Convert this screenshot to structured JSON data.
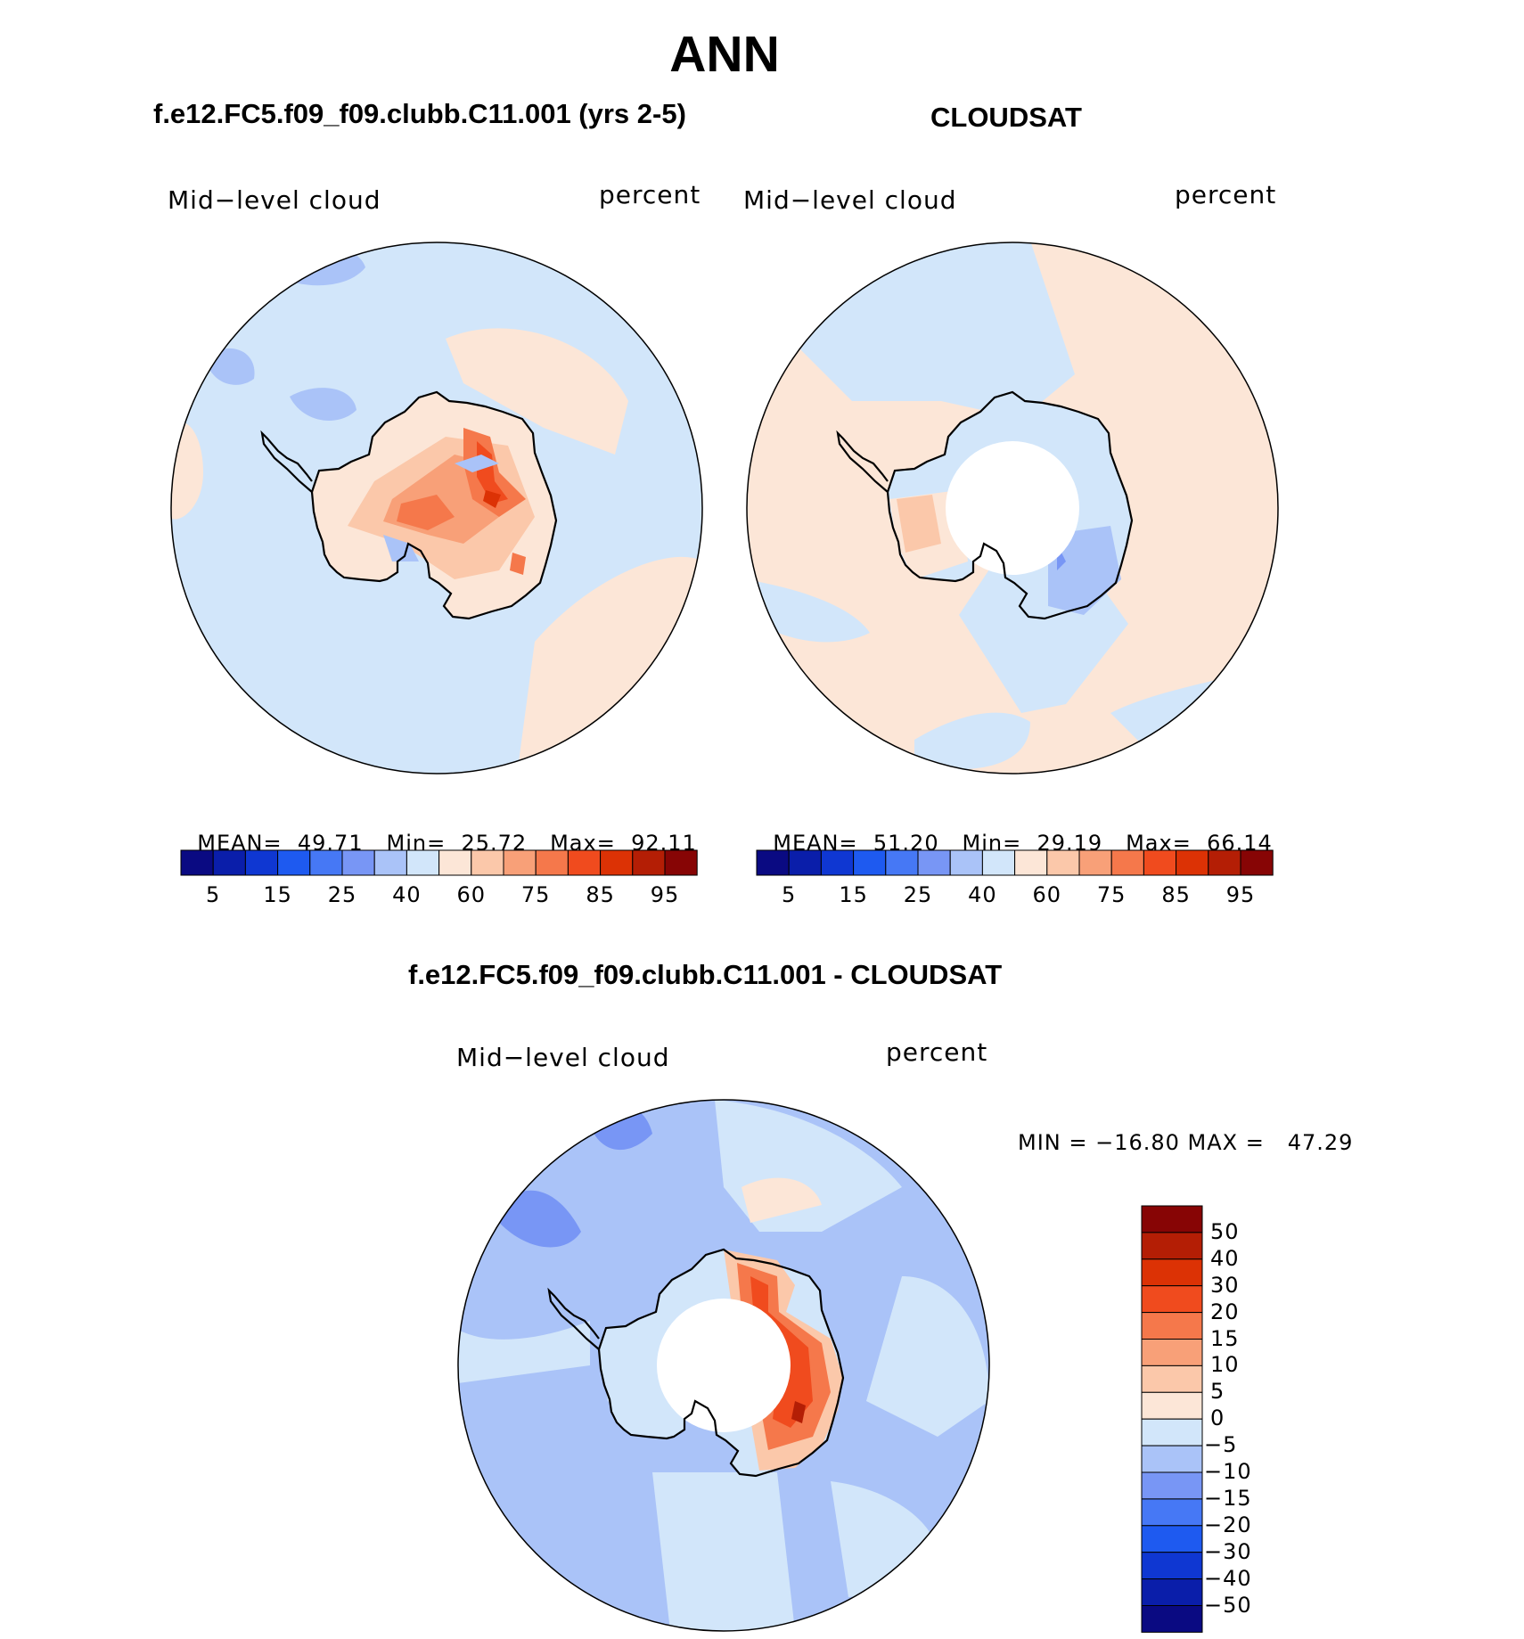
{
  "title": "ANN",
  "panels": {
    "model": {
      "title": "f.e12.FC5.f09_f09.clubb.C11.001 (yrs 2-5)",
      "variable": "Mid−level cloud",
      "units": "percent",
      "mean_label": "MEAN=",
      "mean": "49.71",
      "min_label": "Min=",
      "min": "25.72",
      "max_label": "Max=",
      "max": "92.11"
    },
    "obs": {
      "title": "CLOUDSAT",
      "variable": "Mid−level cloud",
      "units": "percent",
      "mean_label": "MEAN=",
      "mean": "51.20",
      "min_label": "Min=",
      "min": "29.19",
      "max_label": "Max=",
      "max": "66.14"
    },
    "diff": {
      "title": "f.e12.FC5.f09_f09.clubb.C11.001 - CLOUDSAT",
      "variable": "Mid−level cloud",
      "units": "percent",
      "minmax": "MIN = −16.80 MAX =   47.29"
    }
  },
  "colorbar_abs": {
    "colors": [
      "#0a0a82",
      "#0a1eaa",
      "#0f37d2",
      "#1e5af0",
      "#4678f5",
      "#7896f5",
      "#aac3f8",
      "#d2e6fa",
      "#fce6d7",
      "#fbc8aa",
      "#f8a078",
      "#f5784b",
      "#f04b1e",
      "#dc3205",
      "#b41e05",
      "#870505"
    ],
    "tick_labels": [
      "5",
      "15",
      "25",
      "40",
      "60",
      "75",
      "85",
      "95"
    ]
  },
  "colorbar_diff": {
    "colors": [
      "#870505",
      "#b41e05",
      "#dc3205",
      "#f04b1e",
      "#f5784b",
      "#f8a078",
      "#fbc8aa",
      "#fce6d7",
      "#d2e6fa",
      "#aac3f8",
      "#7896f5",
      "#4678f5",
      "#1e5af0",
      "#0f37d2",
      "#0a1eaa",
      "#0a0a82"
    ],
    "tick_labels": [
      "50",
      "40",
      "30",
      "20",
      "15",
      "10",
      "5",
      "0",
      "−5",
      "−10",
      "−15",
      "−20",
      "−30",
      "−40",
      "−50"
    ]
  },
  "map_fills": {
    "ocean_model": "#d2e6fa",
    "ocean_obs": "#fce6d7",
    "ocean_diff": "#aac3f8",
    "missing": "#ffffff",
    "coast": "#000000"
  }
}
